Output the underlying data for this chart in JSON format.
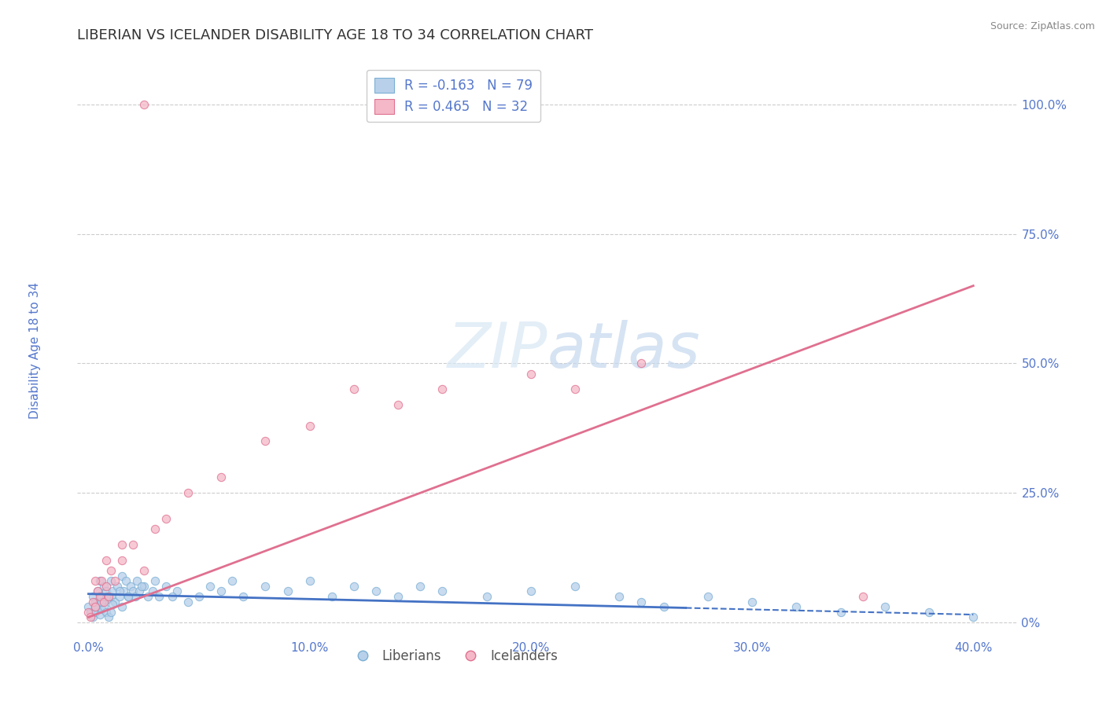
{
  "title": "LIBERIAN VS ICELANDER DISABILITY AGE 18 TO 34 CORRELATION CHART",
  "source": "Source: ZipAtlas.com",
  "ylabel": "Disability Age 18 to 34",
  "xlabel_ticks": [
    "0.0%",
    "10.0%",
    "20.0%",
    "30.0%",
    "40.0%"
  ],
  "xlabel_vals": [
    0.0,
    10.0,
    20.0,
    30.0,
    40.0
  ],
  "ylabel_ticks": [
    "100.0%",
    "75.0%",
    "50.0%",
    "25.0%",
    "0%"
  ],
  "ylabel_vals": [
    100.0,
    75.0,
    50.0,
    25.0,
    0.0
  ],
  "xlim": [
    -0.5,
    42.0
  ],
  "ylim": [
    -3.0,
    108.0
  ],
  "liberian_R": -0.163,
  "liberian_N": 79,
  "icelander_R": 0.465,
  "icelander_N": 32,
  "liberian_color": "#b8d0ea",
  "liberian_edge": "#7bafd4",
  "icelander_color": "#f4b8c8",
  "icelander_edge": "#e07090",
  "liberian_line_color": "#4472c4",
  "icelander_line_color": "#e07090",
  "background_color": "#ffffff",
  "grid_color": "#cccccc",
  "title_color": "#333333",
  "axis_label_color": "#5577cc",
  "watermark_color": "#d0dff0",
  "lib_line_x0": 0.0,
  "lib_line_y0": 5.5,
  "lib_line_x1": 40.0,
  "lib_line_y1": 1.5,
  "lib_line_solid_end": 27.0,
  "ice_line_x0": 0.0,
  "ice_line_y0": 1.0,
  "ice_line_x1": 40.0,
  "ice_line_y1": 65.0,
  "liberian_x": [
    0.0,
    0.1,
    0.2,
    0.2,
    0.3,
    0.3,
    0.4,
    0.4,
    0.5,
    0.5,
    0.5,
    0.6,
    0.6,
    0.7,
    0.7,
    0.8,
    0.8,
    0.9,
    0.9,
    1.0,
    1.0,
    1.0,
    1.1,
    1.2,
    1.3,
    1.4,
    1.5,
    1.5,
    1.6,
    1.7,
    1.8,
    1.9,
    2.0,
    2.1,
    2.2,
    2.3,
    2.5,
    2.7,
    2.9,
    3.0,
    3.2,
    3.5,
    4.0,
    4.5,
    5.0,
    5.5,
    6.0,
    6.5,
    7.0,
    8.0,
    9.0,
    10.0,
    11.0,
    12.0,
    13.0,
    14.0,
    15.0,
    16.0,
    18.0,
    20.0,
    22.0,
    24.0,
    25.0,
    26.0,
    28.0,
    30.0,
    32.0,
    34.0,
    36.0,
    38.0,
    40.0,
    0.3,
    0.6,
    0.8,
    1.1,
    1.4,
    1.8,
    2.4,
    3.8
  ],
  "liberian_y": [
    3.0,
    2.0,
    5.0,
    1.0,
    4.0,
    2.0,
    6.0,
    3.0,
    8.0,
    4.0,
    1.5,
    5.0,
    2.5,
    7.0,
    3.0,
    6.0,
    2.0,
    4.5,
    1.0,
    8.0,
    5.0,
    2.0,
    6.0,
    4.0,
    7.0,
    5.0,
    9.0,
    3.0,
    6.0,
    8.0,
    5.0,
    7.0,
    6.0,
    5.0,
    8.0,
    6.0,
    7.0,
    5.0,
    6.0,
    8.0,
    5.0,
    7.0,
    6.0,
    4.0,
    5.0,
    7.0,
    6.0,
    8.0,
    5.0,
    7.0,
    6.0,
    8.0,
    5.0,
    7.0,
    6.0,
    5.0,
    7.0,
    6.0,
    5.0,
    6.0,
    7.0,
    5.0,
    4.0,
    3.0,
    5.0,
    4.0,
    3.0,
    2.0,
    3.0,
    2.0,
    1.0,
    3.0,
    4.0,
    5.0,
    3.5,
    6.0,
    5.0,
    7.0,
    5.0
  ],
  "icelander_x": [
    0.0,
    0.1,
    0.2,
    0.3,
    0.4,
    0.5,
    0.6,
    0.7,
    0.8,
    0.9,
    1.0,
    1.2,
    1.5,
    2.0,
    2.5,
    3.0,
    3.5,
    4.5,
    6.0,
    8.0,
    10.0,
    12.0,
    14.0,
    16.0,
    20.0,
    22.0,
    25.0,
    0.3,
    0.8,
    1.5,
    35.0,
    2.5
  ],
  "icelander_y": [
    2.0,
    1.0,
    4.0,
    3.0,
    6.0,
    5.0,
    8.0,
    4.0,
    7.0,
    5.0,
    10.0,
    8.0,
    12.0,
    15.0,
    10.0,
    18.0,
    20.0,
    25.0,
    28.0,
    35.0,
    38.0,
    45.0,
    42.0,
    45.0,
    48.0,
    45.0,
    50.0,
    8.0,
    12.0,
    15.0,
    5.0,
    100.0
  ]
}
